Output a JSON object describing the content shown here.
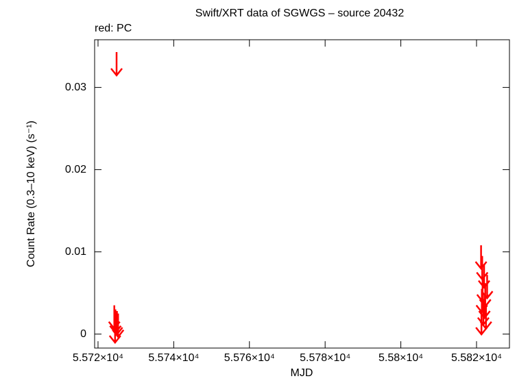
{
  "chart_data": {
    "type": "upper-limit",
    "title": "Swift/XRT data of SGWGS – source 20432",
    "subtitle": "red: PC",
    "x_label": "MJD",
    "y_label": "Count Rate (0.3–10 keV) (s⁻¹)",
    "xlim": [
      55719.1,
      55828.7
    ],
    "ylim": [
      -0.0017,
      0.0358
    ],
    "xticks": [
      {
        "value": 55720,
        "label": "5.572×10⁴"
      },
      {
        "value": 55740,
        "label": "5.574×10⁴"
      },
      {
        "value": 55760,
        "label": "5.576×10⁴"
      },
      {
        "value": 55780,
        "label": "5.578×10⁴"
      },
      {
        "value": 55800,
        "label": "5.58×10⁴"
      },
      {
        "value": 55820,
        "label": "5.582×10⁴"
      }
    ],
    "yticks": [
      0,
      0.01,
      0.02,
      0.03
    ],
    "series": [
      {
        "name": "PC",
        "color": "#ff0000",
        "x": [
          55724.9,
          55724.3,
          55724.6,
          55725.0,
          55725.3,
          55724.5,
          55821.2,
          55821.5,
          55822.0,
          55821.6,
          55822.3,
          55822.8,
          55821.4,
          55822.1,
          55821.8,
          55822.5,
          55821.3
        ],
        "values": [
          0.0343,
          0.0035,
          0.003,
          0.0028,
          0.0025,
          0.0018,
          0.0108,
          0.0095,
          0.0085,
          0.0068,
          0.0062,
          0.0072,
          0.0055,
          0.0048,
          0.004,
          0.0035,
          0.0028
        ]
      }
    ]
  }
}
